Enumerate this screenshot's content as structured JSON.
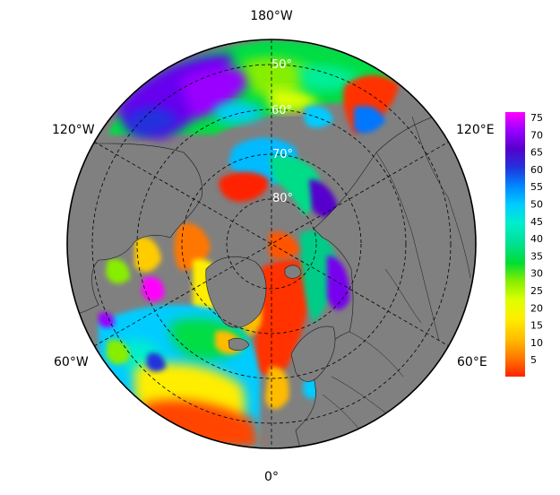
{
  "map": {
    "projection": "north-polar-stereographic",
    "land_color": "#808080",
    "border_color": "#000000",
    "grid_style": "dashed",
    "longitude_labels": {
      "top": "180°W",
      "upper_left": "120°W",
      "upper_right": "120°E",
      "lower_left": "60°W",
      "lower_right": "60°E",
      "bottom": "0°"
    },
    "latitude_labels": [
      "50°",
      "60°",
      "70°",
      "80°"
    ]
  },
  "colorbar": {
    "ticks": [
      "75",
      "70",
      "65",
      "60",
      "55",
      "50",
      "45",
      "40",
      "35",
      "30",
      "25",
      "20",
      "15",
      "10",
      "5"
    ],
    "colors": [
      "#ff00ff",
      "#9900ff",
      "#5500cc",
      "#2233dd",
      "#0088ff",
      "#00ccff",
      "#00eecc",
      "#00e090",
      "#00dd33",
      "#88ee00",
      "#ddff00",
      "#ffee00",
      "#ffbb00",
      "#ff7700",
      "#ff2200"
    ]
  }
}
